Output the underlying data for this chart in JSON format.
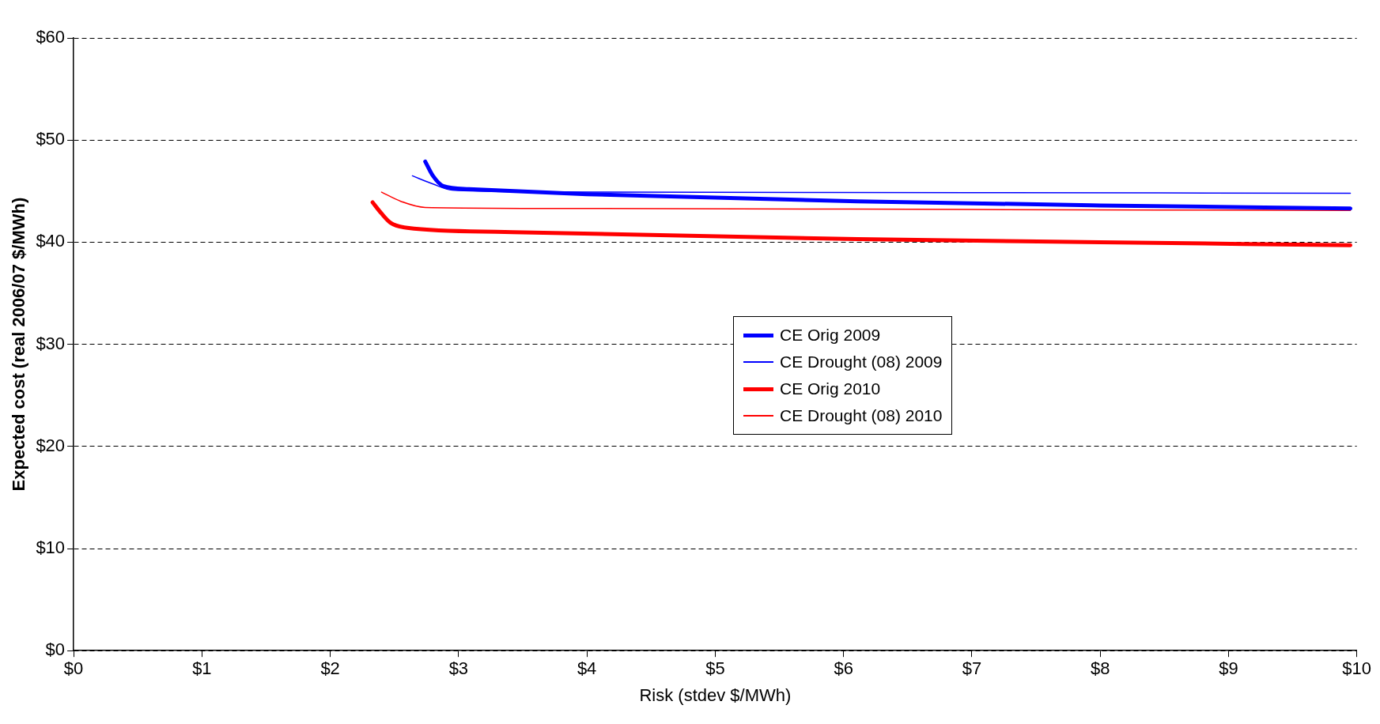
{
  "chart_data": {
    "type": "line",
    "xlabel": "Risk (stdev $/MWh)",
    "ylabel": "Expected cost (real 2006/07 $/MWh)",
    "xlim": [
      0,
      10
    ],
    "xticks": [
      {
        "value": 0,
        "label": "$0"
      },
      {
        "value": 1,
        "label": "$1"
      },
      {
        "value": 2,
        "label": "$2"
      },
      {
        "value": 3,
        "label": "$3"
      },
      {
        "value": 4,
        "label": "$4"
      },
      {
        "value": 5,
        "label": "$5"
      },
      {
        "value": 6,
        "label": "$6"
      },
      {
        "value": 7,
        "label": "$7"
      },
      {
        "value": 8,
        "label": "$8"
      },
      {
        "value": 9,
        "label": "$9"
      },
      {
        "value": 10,
        "label": "$10"
      }
    ],
    "ylim": [
      0,
      60
    ],
    "yticks": [
      {
        "value": 0,
        "label": "$0"
      },
      {
        "value": 10,
        "label": "$10"
      },
      {
        "value": 20,
        "label": "$20"
      },
      {
        "value": 30,
        "label": "$30"
      },
      {
        "value": 40,
        "label": "$40"
      },
      {
        "value": 50,
        "label": "$50"
      },
      {
        "value": 60,
        "label": "$60"
      }
    ],
    "grid": "y",
    "legend": "center",
    "marker": "none",
    "series": [
      {
        "name": "CE Orig 2009",
        "color": "#0000ff",
        "x": [
          2.74,
          2.8,
          2.88,
          3.08,
          4,
          6.11,
          8,
          9.95
        ],
        "values": [
          47.9,
          46.5,
          45.5,
          45.2,
          44.7,
          44.0,
          43.6,
          43.3
        ]
      },
      {
        "name": "CE Drought (08) 2009",
        "color": "#0000ff",
        "x": [
          2.64,
          2.8,
          2.95,
          3.5,
          4.05,
          7,
          9.95
        ],
        "values": [
          46.5,
          45.7,
          45.1,
          44.95,
          44.9,
          44.85,
          44.8
        ]
      },
      {
        "name": "CE Orig 2010",
        "color": "#ff0000",
        "x": [
          2.33,
          2.4,
          2.47,
          2.6,
          3.36,
          6.11,
          8,
          9.95
        ],
        "values": [
          43.9,
          42.8,
          41.9,
          41.4,
          41.0,
          40.3,
          40.0,
          39.7
        ]
      },
      {
        "name": "CE Drought (08) 2010",
        "color": "#ff0000",
        "x": [
          2.4,
          2.55,
          2.74,
          4.05,
          7,
          9.95
        ],
        "values": [
          44.9,
          44.0,
          43.4,
          43.3,
          43.2,
          43.1
        ]
      }
    ]
  }
}
